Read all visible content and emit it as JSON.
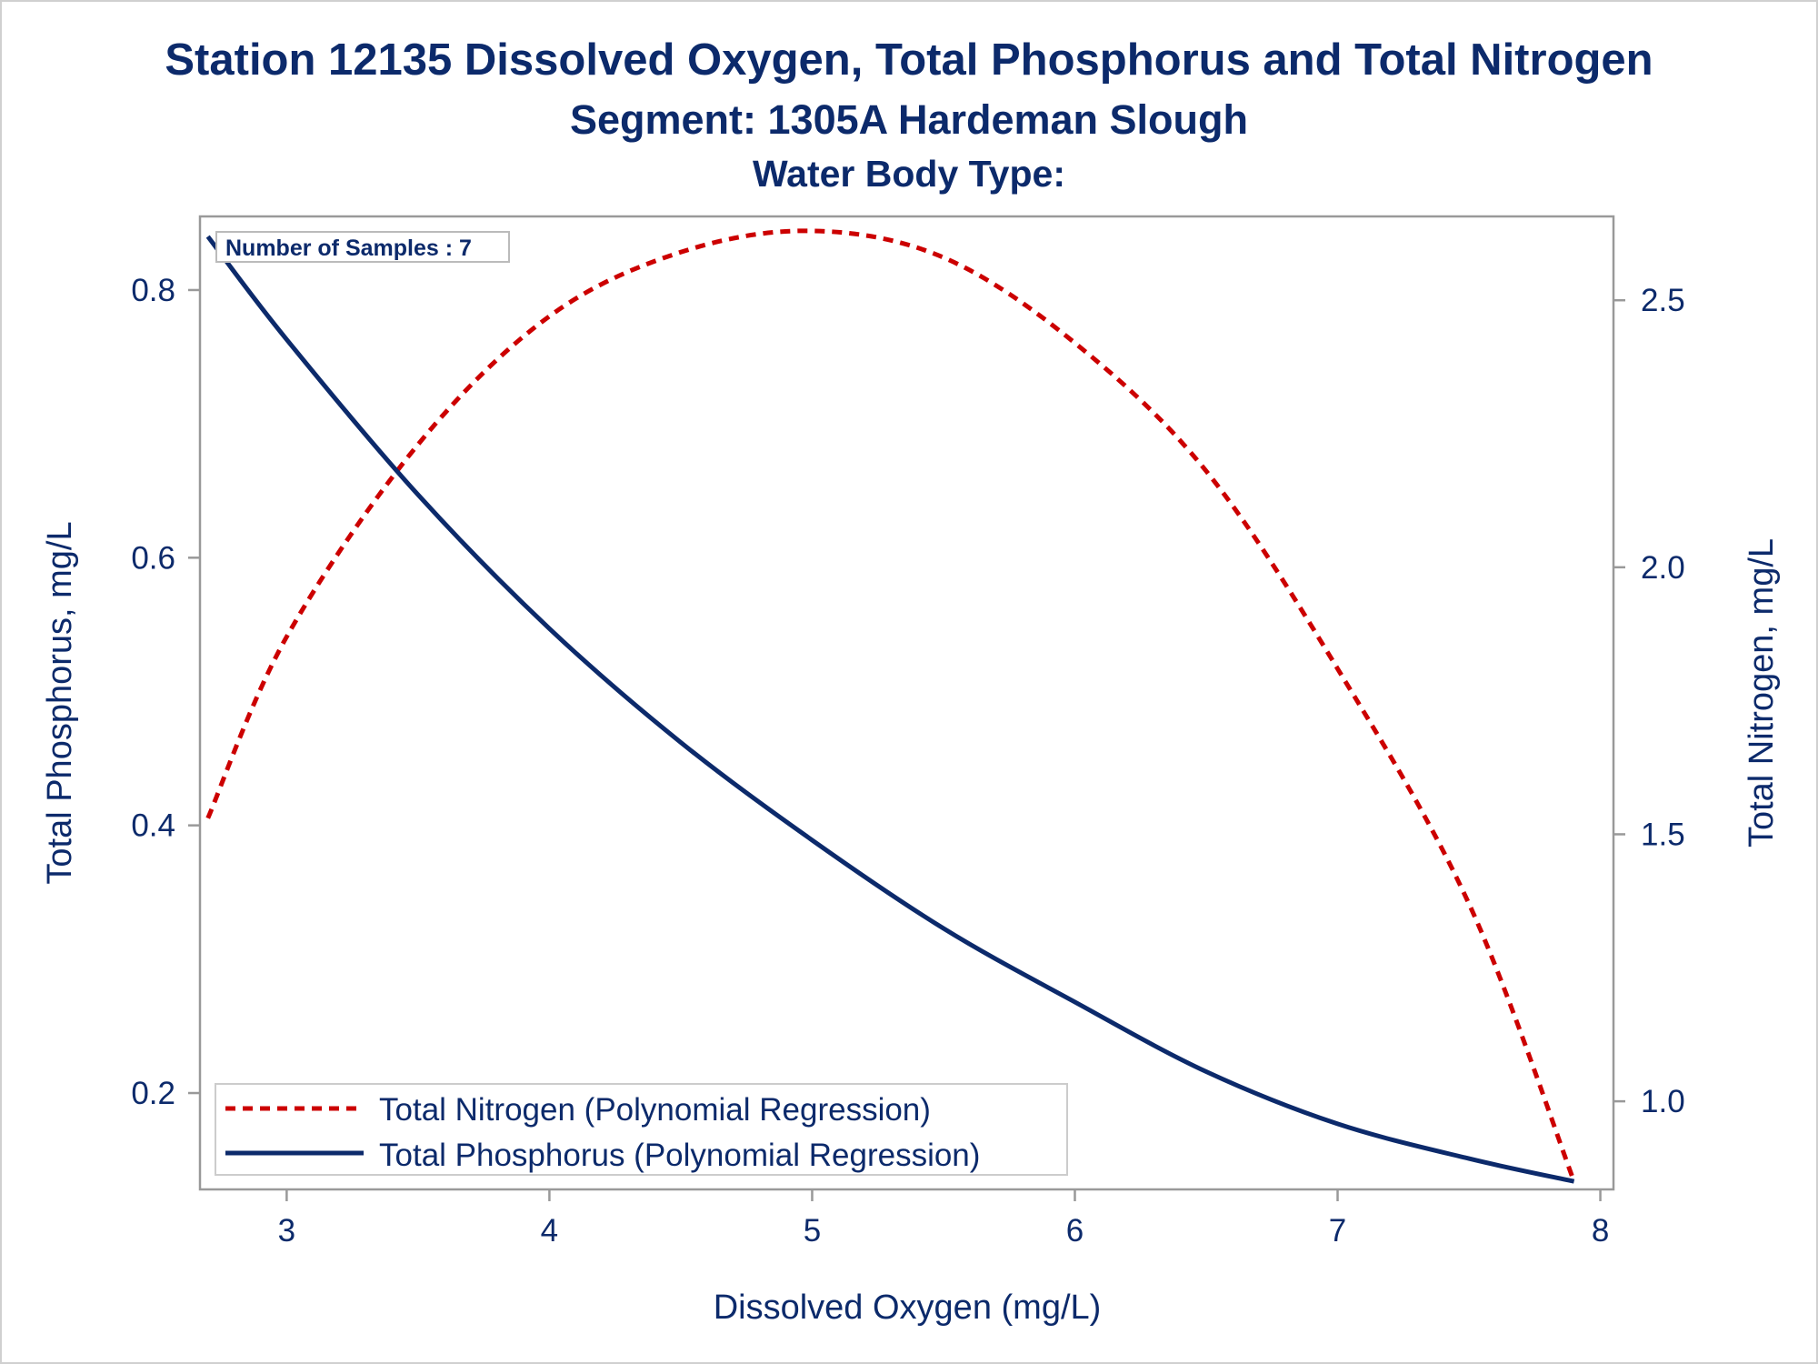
{
  "chart_data": {
    "type": "line",
    "title": "Station 12135  Dissolved Oxygen, Total Phosphorus and Total Nitrogen",
    "subtitle": "Segment: 1305A  Hardeman Slough",
    "subtitle2": "Water Body Type:",
    "xlabel": "Dissolved Oxygen (mg/L)",
    "ylabel_left": "Total Phosphorus, mg/L",
    "ylabel_right": "Total Nitrogen, mg/L",
    "xlim": [
      2.67,
      8.05
    ],
    "ylim_left": [
      0.128,
      0.855
    ],
    "ylim_right": [
      0.835,
      2.657
    ],
    "x_ticks": [
      "3",
      "4",
      "5",
      "6",
      "7",
      "8"
    ],
    "y_left_ticks": [
      "0.2",
      "0.4",
      "0.6",
      "0.8"
    ],
    "y_right_ticks": [
      "1.0",
      "1.5",
      "2.0",
      "2.5"
    ],
    "annotation": "Number of Samples : 7",
    "legend_position": "bottom-left",
    "grid": false,
    "series": [
      {
        "name": "Total Nitrogen (Polynomial Regression)",
        "axis": "right",
        "color": "#cc0000",
        "dash": "dashed",
        "x": [
          2.7,
          3.0,
          3.5,
          4.0,
          4.5,
          5.0,
          5.5,
          6.0,
          6.5,
          7.0,
          7.5,
          7.9
        ],
        "y": [
          1.53,
          1.87,
          2.23,
          2.47,
          2.59,
          2.63,
          2.58,
          2.42,
          2.18,
          1.81,
          1.37,
          0.85
        ]
      },
      {
        "name": "Total Phosphorus (Polynomial Regression)",
        "axis": "left",
        "color": "#0c2a6b",
        "dash": "solid",
        "x": [
          2.7,
          3.0,
          3.5,
          4.0,
          4.5,
          5.0,
          5.5,
          6.0,
          6.5,
          7.0,
          7.5,
          7.9
        ],
        "y": [
          0.84,
          0.763,
          0.647,
          0.547,
          0.462,
          0.389,
          0.323,
          0.268,
          0.216,
          0.177,
          0.151,
          0.134
        ]
      }
    ]
  }
}
